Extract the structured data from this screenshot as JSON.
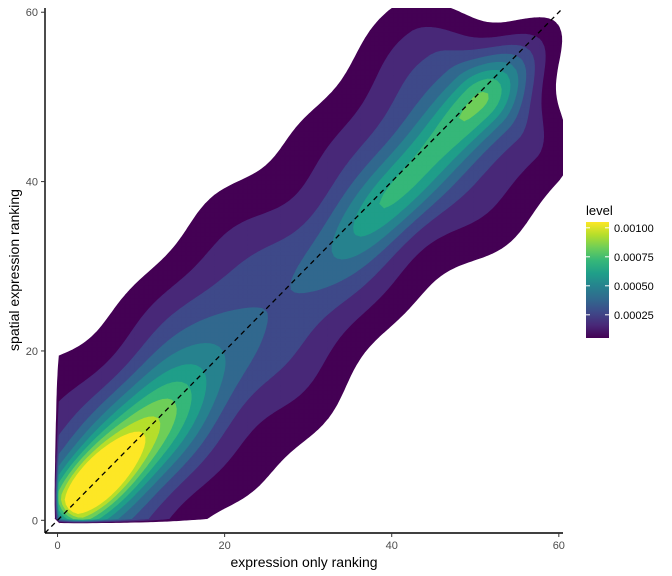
{
  "chart_data": {
    "type": "density-contour",
    "xlabel": "expression only ranking",
    "ylabel": "spatial expression ranking",
    "xlim": [
      -1.5,
      60.5
    ],
    "ylim": [
      -1.5,
      60.5
    ],
    "x_ticks": [
      0,
      20,
      40,
      60
    ],
    "y_ticks": [
      0,
      20,
      40,
      60
    ],
    "x_tick_labels": [
      "0",
      "20",
      "40",
      "60"
    ],
    "y_tick_labels": [
      "0",
      "20",
      "40",
      "60"
    ],
    "grid": false,
    "reference_line": {
      "style": "dashed",
      "slope": 1,
      "intercept": 0,
      "color": "#000000"
    },
    "density_peaks": [
      {
        "x": 4,
        "y": 4,
        "level": 0.00105
      },
      {
        "x": 10,
        "y": 10,
        "level": 0.0009
      },
      {
        "x": 40,
        "y": 38,
        "level": 0.0007
      },
      {
        "x": 51,
        "y": 50,
        "level": 0.0008
      }
    ],
    "contour_levels": [
      0.0001,
      0.0002,
      0.0003,
      0.0004,
      0.0005,
      0.0006,
      0.0007,
      0.0008,
      0.0009,
      0.001
    ],
    "legend": {
      "title": "level",
      "position": "right",
      "ticks": [
        0.001,
        0.00075,
        0.0005,
        0.00025
      ],
      "tick_labels": [
        "0.00100",
        "0.00075",
        "0.00050",
        "0.00025"
      ],
      "range": [
        5e-05,
        0.00105
      ]
    },
    "palette": [
      "#440154",
      "#482878",
      "#3e4989",
      "#31688e",
      "#26828e",
      "#1f9e89",
      "#35b779",
      "#6ece58",
      "#b5de2b",
      "#fde725"
    ]
  }
}
